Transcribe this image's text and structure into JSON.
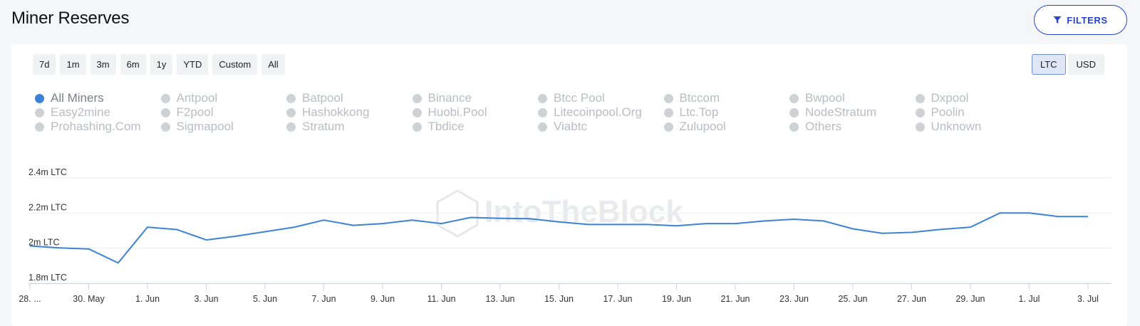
{
  "page": {
    "title": "Miner Reserves"
  },
  "filters": {
    "label": "FILTERS"
  },
  "range_buttons": [
    "7d",
    "1m",
    "3m",
    "6m",
    "1y",
    "YTD",
    "Custom",
    "All"
  ],
  "unit_buttons": [
    {
      "label": "LTC",
      "active": true
    },
    {
      "label": "USD",
      "active": false
    }
  ],
  "legend": [
    {
      "label": "All Miners",
      "on": true
    },
    {
      "label": "Antpool",
      "on": false
    },
    {
      "label": "Batpool",
      "on": false
    },
    {
      "label": "Binance",
      "on": false
    },
    {
      "label": "Btcc Pool",
      "on": false
    },
    {
      "label": "Btccom",
      "on": false
    },
    {
      "label": "Bwpool",
      "on": false
    },
    {
      "label": "Dxpool",
      "on": false
    },
    {
      "label": "Easy2mine",
      "on": false
    },
    {
      "label": "F2pool",
      "on": false
    },
    {
      "label": "Hashokkong",
      "on": false
    },
    {
      "label": "Huobi.Pool",
      "on": false
    },
    {
      "label": "Litecoinpool.Org",
      "on": false
    },
    {
      "label": "Ltc.Top",
      "on": false
    },
    {
      "label": "NodeStratum",
      "on": false
    },
    {
      "label": "Poolin",
      "on": false
    },
    {
      "label": "Prohashing.Com",
      "on": false
    },
    {
      "label": "Sigmapool",
      "on": false
    },
    {
      "label": "Stratum",
      "on": false
    },
    {
      "label": "Tbdice",
      "on": false
    },
    {
      "label": "Viabtc",
      "on": false
    },
    {
      "label": "Zulupool",
      "on": false
    },
    {
      "label": "Others",
      "on": false
    },
    {
      "label": "Unknown",
      "on": false
    }
  ],
  "watermark": "IntoTheBlock",
  "colors": {
    "accent": "#2442d8",
    "series": "#3a82d9",
    "legend_off": "#cfd1d4"
  },
  "chart_data": {
    "type": "line",
    "ylabel": "",
    "ylim": [
      1.8,
      2.4
    ],
    "y_unit": "m LTC",
    "y_ticks": [
      {
        "value": 2.4,
        "label": "2.4m LTC"
      },
      {
        "value": 2.2,
        "label": "2.2m LTC"
      },
      {
        "value": 2.0,
        "label": "2m LTC"
      },
      {
        "value": 1.8,
        "label": "1.8m LTC"
      }
    ],
    "x_start": "2023-05-28",
    "x_ticks": [
      {
        "date": "2023-05-28",
        "label": "28. ..."
      },
      {
        "date": "2023-05-30",
        "label": "30. May"
      },
      {
        "date": "2023-06-01",
        "label": "1. Jun"
      },
      {
        "date": "2023-06-03",
        "label": "3. Jun"
      },
      {
        "date": "2023-06-05",
        "label": "5. Jun"
      },
      {
        "date": "2023-06-07",
        "label": "7. Jun"
      },
      {
        "date": "2023-06-09",
        "label": "9. Jun"
      },
      {
        "date": "2023-06-11",
        "label": "11. Jun"
      },
      {
        "date": "2023-06-13",
        "label": "13. Jun"
      },
      {
        "date": "2023-06-15",
        "label": "15. Jun"
      },
      {
        "date": "2023-06-17",
        "label": "17. Jun"
      },
      {
        "date": "2023-06-19",
        "label": "19. Jun"
      },
      {
        "date": "2023-06-21",
        "label": "21. Jun"
      },
      {
        "date": "2023-06-23",
        "label": "23. Jun"
      },
      {
        "date": "2023-06-25",
        "label": "25. Jun"
      },
      {
        "date": "2023-06-27",
        "label": "27. Jun"
      },
      {
        "date": "2023-06-29",
        "label": "29. Jun"
      },
      {
        "date": "2023-07-01",
        "label": "1. Jul"
      },
      {
        "date": "2023-07-03",
        "label": "3. Jul"
      }
    ],
    "series": [
      {
        "name": "All Miners",
        "x": [
          "2023-05-28",
          "2023-05-29",
          "2023-05-30",
          "2023-05-31",
          "2023-06-01",
          "2023-06-02",
          "2023-06-03",
          "2023-06-04",
          "2023-06-05",
          "2023-06-06",
          "2023-06-07",
          "2023-06-08",
          "2023-06-09",
          "2023-06-10",
          "2023-06-11",
          "2023-06-12",
          "2023-06-13",
          "2023-06-14",
          "2023-06-15",
          "2023-06-16",
          "2023-06-17",
          "2023-06-18",
          "2023-06-19",
          "2023-06-20",
          "2023-06-21",
          "2023-06-22",
          "2023-06-23",
          "2023-06-24",
          "2023-06-25",
          "2023-06-26",
          "2023-06-27",
          "2023-06-28",
          "2023-06-29",
          "2023-06-30",
          "2023-07-01",
          "2023-07-02",
          "2023-07-03"
        ],
        "values": [
          2.013,
          2.002,
          1.996,
          1.916,
          2.12,
          2.106,
          2.047,
          2.068,
          2.094,
          2.12,
          2.16,
          2.13,
          2.14,
          2.16,
          2.14,
          2.175,
          2.17,
          2.168,
          2.15,
          2.135,
          2.135,
          2.135,
          2.127,
          2.14,
          2.14,
          2.155,
          2.165,
          2.155,
          2.11,
          2.085,
          2.09,
          2.107,
          2.12,
          2.2,
          2.2,
          2.18,
          2.18
        ]
      }
    ]
  }
}
